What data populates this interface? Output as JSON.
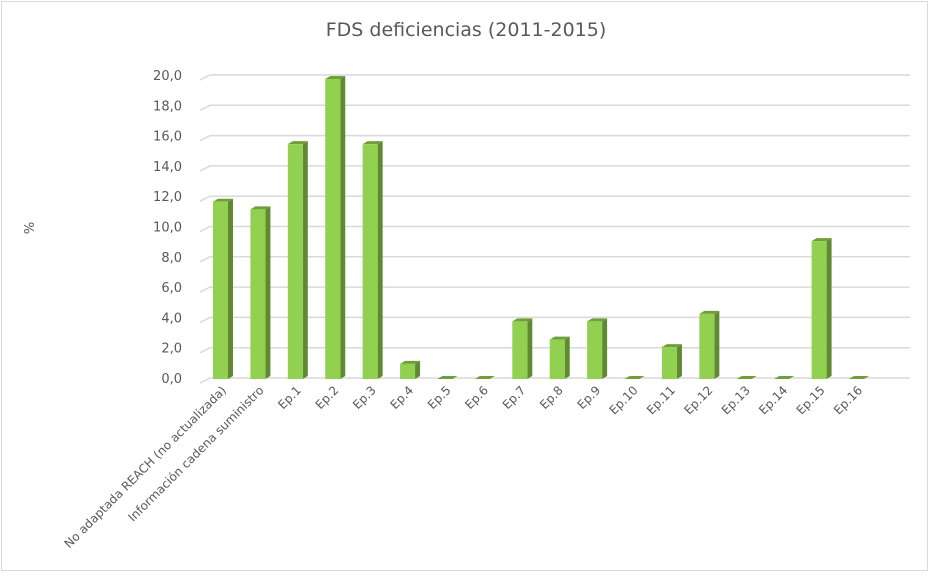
{
  "chart_data": {
    "type": "bar",
    "title": "FDS deficiencias (2011-2015)",
    "xlabel": "",
    "ylabel": "%",
    "ylim": [
      0,
      20
    ],
    "yticks": [
      "0,0",
      "2,0",
      "4,0",
      "6,0",
      "8,0",
      "10,0",
      "12,0",
      "14,0",
      "16,0",
      "18,0",
      "20,0"
    ],
    "grid": true,
    "categories": [
      "No adaptada REACH (no actualizada)",
      "Información cadena suministro",
      "Ep.1",
      "Ep.2",
      "Ep.3",
      "Ep.4",
      "Ep.5",
      "Ep.6",
      "Ep.7",
      "Ep.8",
      "Ep.9",
      "Ep.10",
      "Ep.11",
      "Ep.12",
      "Ep.13",
      "Ep.14",
      "Ep.15",
      "Ep.16"
    ],
    "values": [
      11.7,
      11.2,
      15.5,
      19.8,
      15.5,
      1.0,
      0,
      0,
      3.8,
      2.6,
      3.8,
      0,
      2.1,
      4.3,
      0,
      0,
      9.1,
      0
    ],
    "colors": {
      "front": "#92d050",
      "side": "#5f8a32",
      "top": "#6f9f3a",
      "grid": "#d9d9d9"
    }
  }
}
